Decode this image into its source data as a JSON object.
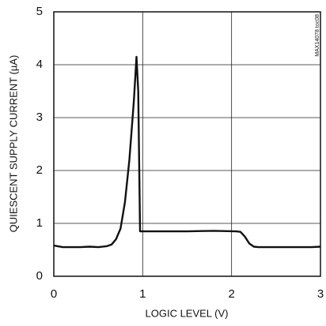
{
  "chart_data": {
    "type": "line",
    "x_label": "LOGIC LEVEL (V)",
    "y_label": "QUIESCENT SUPPLY CURRENT (µA)",
    "annotation": "MAX14078 toc08",
    "xlim": [
      0,
      3
    ],
    "xticks": [
      0,
      1,
      2,
      3
    ],
    "ylim": [
      0,
      5
    ],
    "yticks": [
      0,
      1,
      2,
      3,
      4,
      5
    ],
    "grid": true,
    "series": [
      {
        "color": "#111111",
        "x": [
          0,
          0.1,
          0.2,
          0.3,
          0.4,
          0.5,
          0.6,
          0.65,
          0.7,
          0.75,
          0.8,
          0.85,
          0.9,
          0.93,
          0.95,
          0.97,
          1.0,
          1.2,
          1.5,
          1.8,
          2.05,
          2.1,
          2.15,
          2.2,
          2.25,
          2.3,
          2.5,
          2.7,
          2.9,
          3.0
        ],
        "values": [
          0.58,
          0.55,
          0.55,
          0.55,
          0.56,
          0.55,
          0.57,
          0.6,
          0.7,
          0.9,
          1.4,
          2.2,
          3.3,
          4.15,
          3.5,
          0.85,
          0.85,
          0.85,
          0.85,
          0.86,
          0.85,
          0.84,
          0.75,
          0.62,
          0.56,
          0.55,
          0.55,
          0.55,
          0.55,
          0.56
        ]
      }
    ]
  }
}
